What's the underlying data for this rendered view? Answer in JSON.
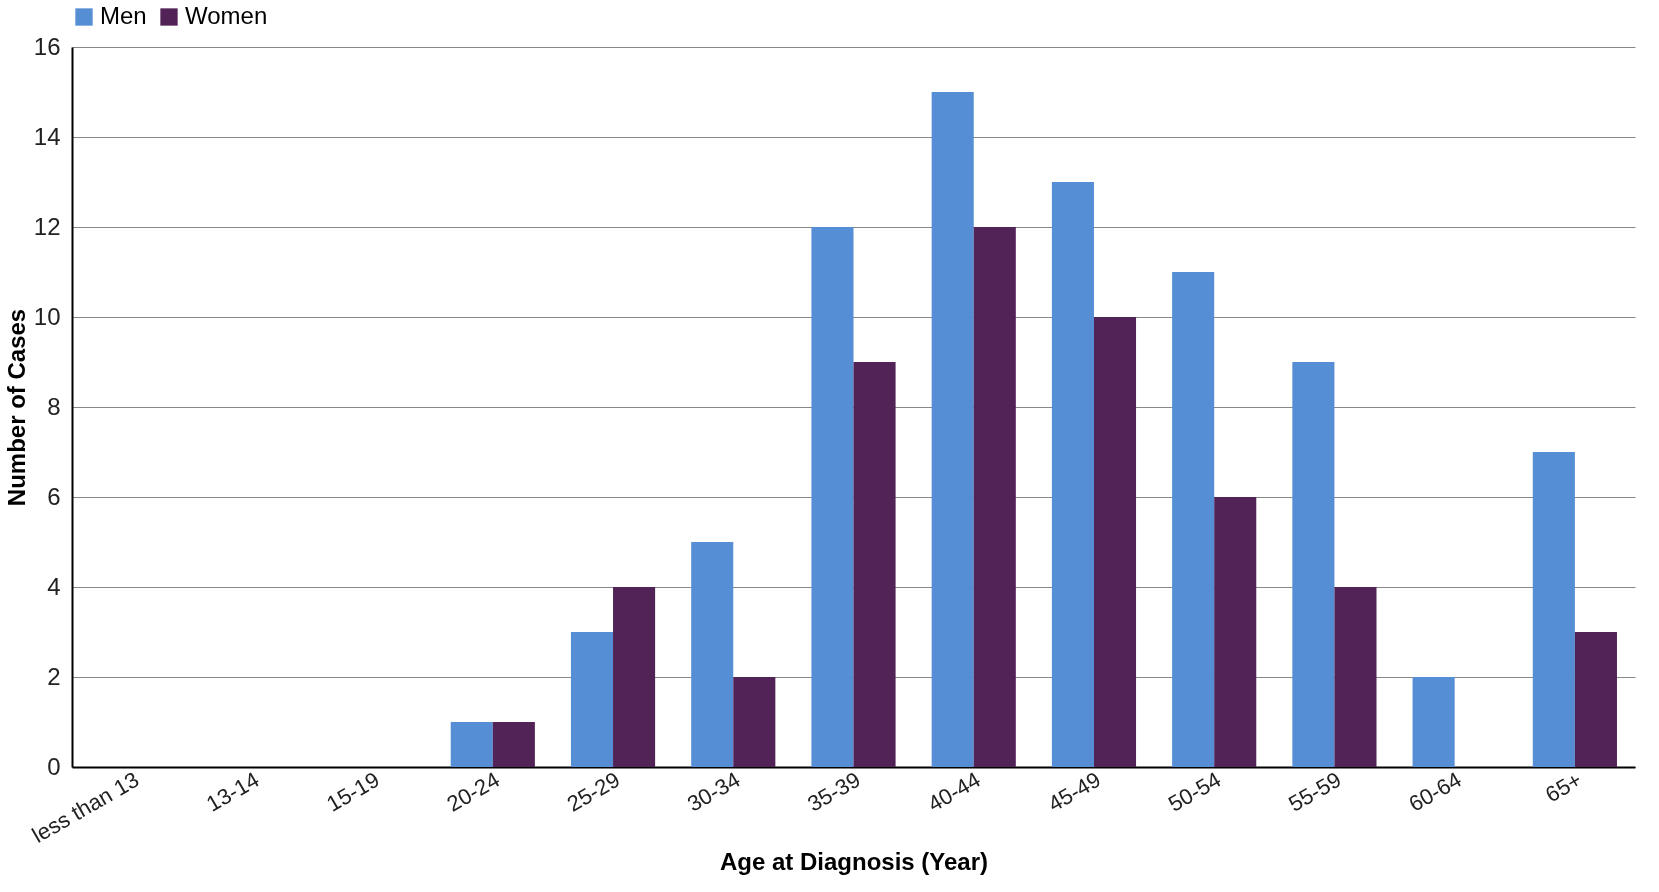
{
  "chart_data": {
    "type": "bar",
    "xlabel": "Age at Diagnosis (Year)",
    "ylabel": "Number of Cases",
    "categories": [
      "less than 13",
      "13-14",
      "15-19",
      "20-24",
      "25-29",
      "30-34",
      "35-39",
      "40-44",
      "45-49",
      "50-54",
      "55-59",
      "60-64",
      "65+"
    ],
    "series": [
      {
        "name": "Men",
        "color": "#558ed5",
        "values": [
          0,
          0,
          0,
          1,
          3,
          5,
          12,
          15,
          13,
          11,
          9,
          2,
          7
        ]
      },
      {
        "name": "Women",
        "color": "#522357",
        "values": [
          0,
          0,
          0,
          1,
          4,
          2,
          9,
          12,
          10,
          6,
          4,
          0,
          3
        ]
      }
    ],
    "ylim": [
      0,
      16
    ],
    "yticks": [
      0,
      2,
      4,
      6,
      8,
      10,
      12,
      14,
      16
    ],
    "grid": "y",
    "legend": "top"
  }
}
